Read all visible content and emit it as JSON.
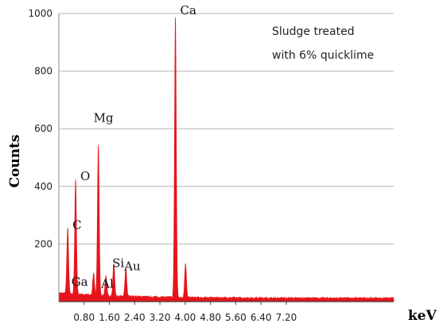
{
  "chart_data": {
    "type": "area",
    "title": "",
    "xlabel": "keV",
    "ylabel": "Counts",
    "xlim": [
      0,
      10.6
    ],
    "ylim": [
      0,
      1000
    ],
    "x_ticks": [
      {
        "value": 0.8,
        "label": "0.80"
      },
      {
        "value": 1.6,
        "label": "1.60"
      },
      {
        "value": 2.4,
        "label": "2.40"
      },
      {
        "value": 3.2,
        "label": "3.20"
      },
      {
        "value": 4.0,
        "label": "4.00"
      },
      {
        "value": 4.8,
        "label": "4.80"
      },
      {
        "value": 5.6,
        "label": "5.60"
      },
      {
        "value": 6.4,
        "label": "6.40"
      },
      {
        "value": 7.2,
        "label": "7.20"
      }
    ],
    "y_ticks": [
      {
        "value": 200,
        "label": "200"
      },
      {
        "value": 400,
        "label": "400"
      },
      {
        "value": 600,
        "label": "600"
      },
      {
        "value": 800,
        "label": "800"
      },
      {
        "value": 1000,
        "label": "1000"
      }
    ],
    "grid": true,
    "color": "#e8141b",
    "annotation_text": [
      "Sludge treated",
      "with 6% quicklime"
    ],
    "peaks": [
      {
        "label": "C",
        "x": 0.28,
        "counts": 230
      },
      {
        "label": "O",
        "x": 0.53,
        "counts": 400
      },
      {
        "label": "Mg",
        "x": 1.25,
        "counts": 525
      },
      {
        "label": "Ga",
        "x": 1.1,
        "counts": 75
      },
      {
        "label": "Al",
        "x": 1.49,
        "counts": 70
      },
      {
        "label": "Si",
        "x": 1.74,
        "counts": 115
      },
      {
        "label": "Au",
        "x": 2.12,
        "counts": 100
      },
      {
        "label": "Ca",
        "x": 3.69,
        "counts": 975
      },
      {
        "label": "Ca",
        "x": 4.01,
        "counts": 120
      }
    ]
  }
}
